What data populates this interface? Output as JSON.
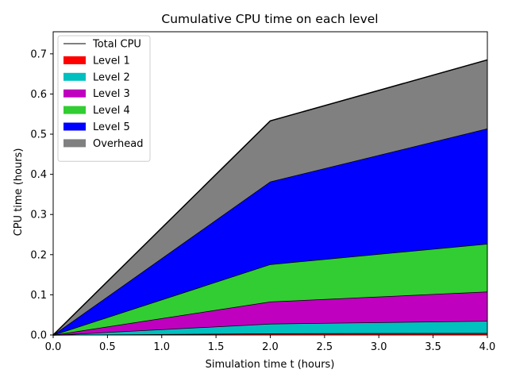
{
  "chart_data": {
    "type": "area",
    "title": "Cumulative CPU time on each level",
    "xlabel": "Simulation time t (hours)",
    "ylabel": "CPU time (hours)",
    "x": [
      0.0,
      2.0,
      4.0
    ],
    "xlim": [
      0.0,
      4.0
    ],
    "ylim": [
      0.0,
      0.755
    ],
    "xticks": [
      "0.0",
      "0.5",
      "1.0",
      "1.5",
      "2.0",
      "2.5",
      "3.0",
      "3.5",
      "4.0"
    ],
    "yticks": [
      "0.0",
      "0.1",
      "0.2",
      "0.3",
      "0.4",
      "0.5",
      "0.6",
      "0.7"
    ],
    "stacked": true,
    "series": [
      {
        "name": "Level 1",
        "color": "#ff0000",
        "values": [
          0.0,
          0.004,
          0.005
        ]
      },
      {
        "name": "Level 2",
        "color": "#00bfbf",
        "values": [
          0.0,
          0.024,
          0.03
        ]
      },
      {
        "name": "Level 3",
        "color": "#bf00bf",
        "values": [
          0.0,
          0.055,
          0.073
        ]
      },
      {
        "name": "Level 4",
        "color": "#32cd32",
        "values": [
          0.0,
          0.093,
          0.119
        ]
      },
      {
        "name": "Level 5",
        "color": "#0000ff",
        "values": [
          0.0,
          0.206,
          0.287
        ]
      },
      {
        "name": "Overhead",
        "color": "#808080",
        "values": [
          0.0,
          0.151,
          0.171
        ]
      }
    ],
    "total": {
      "name": "Total CPU",
      "color": "#000000",
      "values": [
        0.0,
        0.533,
        0.685
      ]
    },
    "legend_entries": [
      "Total CPU",
      "Level 1",
      "Level 2",
      "Level 3",
      "Level 4",
      "Level 5",
      "Overhead"
    ],
    "legend_position": "top-left",
    "grid": false
  }
}
